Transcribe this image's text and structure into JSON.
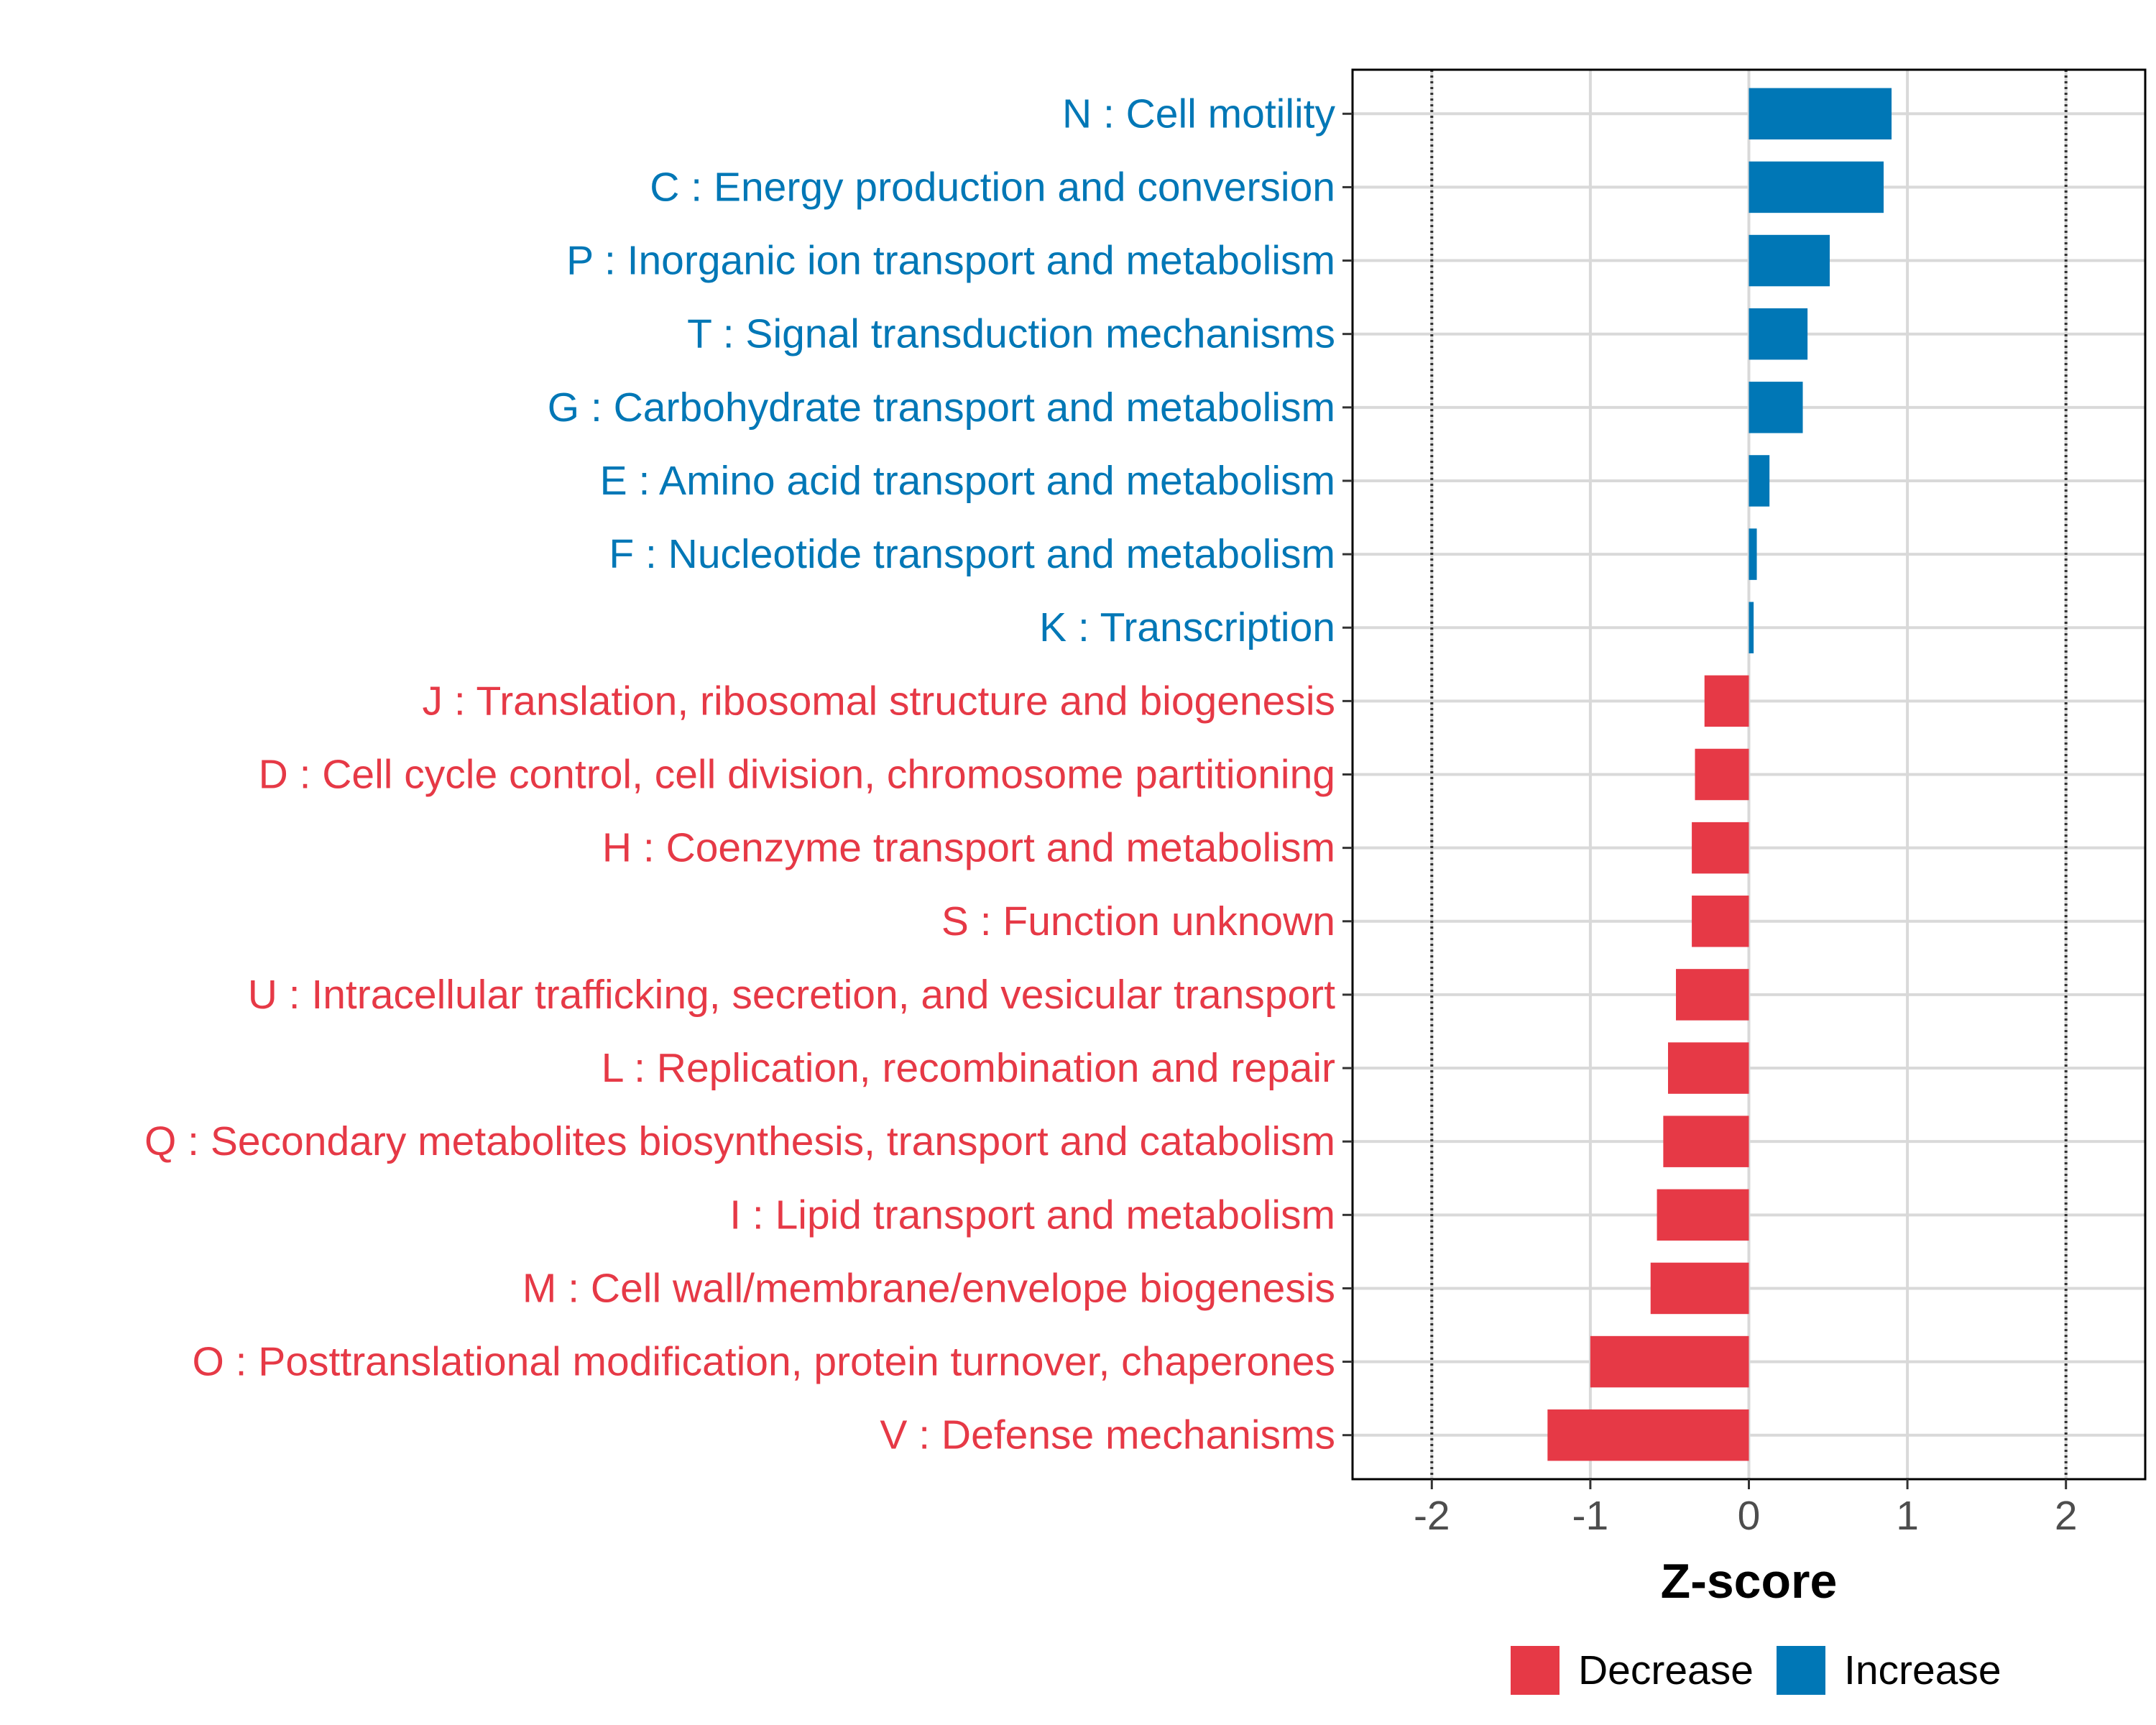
{
  "chart_data": {
    "type": "bar",
    "orientation": "horizontal",
    "title": "",
    "xlabel": "Z-score",
    "ylabel": "",
    "xlim": [
      -2.5,
      2.5
    ],
    "x_ticks": [
      -2,
      -1,
      0,
      1,
      2
    ],
    "x_tick_labels": [
      "-2",
      "-1",
      "0",
      "1",
      "2"
    ],
    "reference_lines": [
      -2,
      2
    ],
    "grid": true,
    "legend_position": "bottom",
    "colors": {
      "Decrease": "#e63946",
      "Increase": "#0077b6"
    },
    "legend": [
      {
        "name": "Decrease",
        "color": "#e63946"
      },
      {
        "name": "Increase",
        "color": "#0077b6"
      }
    ],
    "categories": [
      "N : Cell motility",
      "C : Energy production and conversion",
      "P : Inorganic ion transport and metabolism",
      "T : Signal transduction mechanisms",
      "G : Carbohydrate transport and metabolism",
      "E : Amino acid transport and metabolism",
      "F : Nucleotide transport and metabolism",
      "K : Transcription",
      "J : Translation, ribosomal structure and biogenesis",
      "D : Cell cycle control, cell division, chromosome partitioning",
      "H : Coenzyme transport and metabolism",
      "S : Function unknown",
      "U : Intracellular trafficking, secretion, and vesicular transport",
      "L : Replication, recombination and repair",
      "Q : Secondary metabolites biosynthesis, transport and catabolism",
      "I : Lipid transport and metabolism",
      "M : Cell wall/membrane/envelope biogenesis",
      "O : Posttranslational modification, protein turnover, chaperones",
      "V : Defense mechanisms"
    ],
    "values": [
      0.9,
      0.85,
      0.51,
      0.37,
      0.34,
      0.13,
      0.05,
      0.03,
      -0.28,
      -0.34,
      -0.36,
      -0.36,
      -0.46,
      -0.51,
      -0.54,
      -0.58,
      -0.62,
      -1.0,
      -1.27
    ],
    "groups": [
      "Increase",
      "Increase",
      "Increase",
      "Increase",
      "Increase",
      "Increase",
      "Increase",
      "Increase",
      "Decrease",
      "Decrease",
      "Decrease",
      "Decrease",
      "Decrease",
      "Decrease",
      "Decrease",
      "Decrease",
      "Decrease",
      "Decrease",
      "Decrease"
    ]
  }
}
